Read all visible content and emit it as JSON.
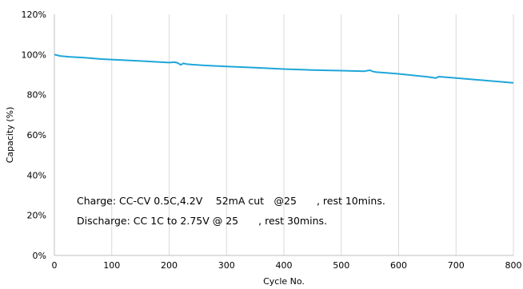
{
  "chart_data": {
    "type": "line",
    "title": "",
    "xlabel": "Cycle No.",
    "ylabel": "Capacity (%)",
    "xlim": [
      0,
      800
    ],
    "ylim": [
      0,
      120
    ],
    "x_ticks": [
      "0",
      "100",
      "200",
      "300",
      "400",
      "500",
      "600",
      "700",
      "800"
    ],
    "y_ticks": [
      "0%",
      "20%",
      "40%",
      "60%",
      "80%",
      "100%",
      "120%"
    ],
    "grid": "vertical",
    "line_color": "#1fa6d9",
    "series": [
      {
        "x": [
          0,
          10,
          25,
          50,
          80,
          100,
          150,
          200,
          210,
          215,
          220,
          225,
          230,
          240,
          260,
          300,
          350,
          400,
          450,
          500,
          540,
          550,
          555,
          560,
          600,
          650,
          665,
          670,
          700,
          750,
          800
        ],
        "values": [
          100,
          99.3,
          98.9,
          98.5,
          97.8,
          97.5,
          96.8,
          96.0,
          96.2,
          95.8,
          94.9,
          95.6,
          95.3,
          95.0,
          94.6,
          94.1,
          93.5,
          92.8,
          92.3,
          92.0,
          91.7,
          92.2,
          91.6,
          91.3,
          90.4,
          88.9,
          88.3,
          89.0,
          88.3,
          87.1,
          85.9
        ]
      }
    ],
    "annotations": [
      "Charge: CC-CV 0.5C,4.2V 　52mA cut　@25　　, rest 10mins.",
      "Discharge: CC 1C to 2.75V @ 25　　, rest 30mins."
    ]
  }
}
